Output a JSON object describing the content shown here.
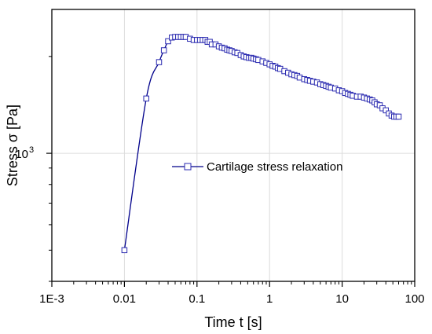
{
  "chart_data": {
    "type": "line",
    "x_scale": "log",
    "y_scale": "log",
    "xlabel": "Time t [s]",
    "ylabel": "Stress σ [Pa]",
    "xlim": [
      0.001,
      100
    ],
    "ylim": [
      400,
      2800
    ],
    "x_ticks": [
      {
        "value": 0.001,
        "label": "1E-3"
      },
      {
        "value": 0.01,
        "label": "0.01"
      },
      {
        "value": 0.1,
        "label": "0.1"
      },
      {
        "value": 1,
        "label": "1"
      },
      {
        "value": 10,
        "label": "10"
      },
      {
        "value": 100,
        "label": "100"
      }
    ],
    "y_ticks": [
      {
        "value": 1000,
        "base": "10",
        "exponent": "3"
      }
    ],
    "grid": true,
    "legend_position": "center",
    "colors": {
      "series": "#00008b",
      "marker_edge": "#2a2ab0",
      "grid": "#dcdcdc"
    },
    "series": [
      {
        "name": "Cartilage stress relaxation",
        "marker": "square",
        "x": [
          0.01,
          0.02,
          0.03,
          0.035,
          0.04,
          0.045,
          0.05,
          0.055,
          0.06,
          0.065,
          0.07,
          0.08,
          0.09,
          0.1,
          0.11,
          0.12,
          0.13,
          0.14,
          0.15,
          0.16,
          0.18,
          0.2,
          0.22,
          0.24,
          0.26,
          0.28,
          0.3,
          0.33,
          0.36,
          0.4,
          0.44,
          0.48,
          0.52,
          0.56,
          0.6,
          0.65,
          0.7,
          0.8,
          0.9,
          1.0,
          1.1,
          1.2,
          1.3,
          1.4,
          1.6,
          1.8,
          2.0,
          2.2,
          2.4,
          2.6,
          3.0,
          3.3,
          3.6,
          4.0,
          4.5,
          5.0,
          5.5,
          6.0,
          6.5,
          7.0,
          8.0,
          9.0,
          10.0,
          11.0,
          12.0,
          13.0,
          14.0,
          16.0,
          18.0,
          20.0,
          22.0,
          24.0,
          26.0,
          28.0,
          30.0,
          33.0,
          36.0,
          40.0,
          44.0,
          48.0,
          52.0,
          56.0,
          60.0
        ],
        "y": [
          500,
          1480,
          1920,
          2090,
          2230,
          2290,
          2300,
          2300,
          2300,
          2300,
          2300,
          2270,
          2250,
          2250,
          2250,
          2250,
          2250,
          2220,
          2220,
          2180,
          2180,
          2150,
          2130,
          2120,
          2100,
          2090,
          2080,
          2060,
          2050,
          2020,
          2000,
          1990,
          1980,
          1980,
          1970,
          1960,
          1950,
          1930,
          1910,
          1890,
          1870,
          1860,
          1840,
          1830,
          1800,
          1780,
          1760,
          1750,
          1740,
          1720,
          1700,
          1690,
          1680,
          1670,
          1660,
          1640,
          1630,
          1620,
          1610,
          1600,
          1590,
          1570,
          1560,
          1540,
          1530,
          1520,
          1510,
          1500,
          1500,
          1490,
          1480,
          1470,
          1460,
          1440,
          1420,
          1410,
          1380,
          1360,
          1330,
          1310,
          1300,
          1300,
          1300
        ]
      }
    ]
  }
}
